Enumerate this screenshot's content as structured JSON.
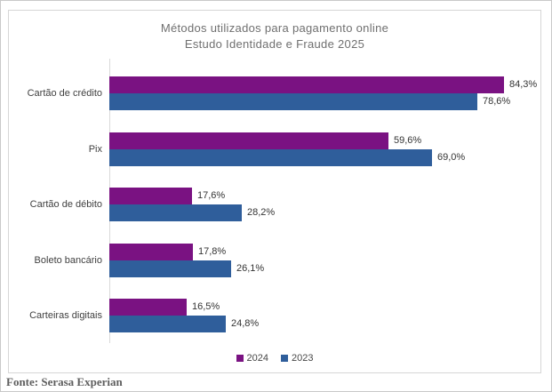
{
  "chart": {
    "title_line1": "Métodos utilizados para pagamento online",
    "title_line2": "Estudo Identidade e Fraude 2025"
  },
  "chart_data": {
    "type": "bar",
    "orientation": "horizontal",
    "title": "Métodos utilizados para pagamento online — Estudo Identidade e Fraude 2025",
    "categories": [
      "Cartão de crédito",
      "Pix",
      "Cartão de débito",
      "Boleto bancário",
      "Carteiras digitais"
    ],
    "series": [
      {
        "name": "2024",
        "color": "#7a1282",
        "values": [
          84.3,
          59.6,
          17.6,
          17.8,
          16.5
        ],
        "labels": [
          "84,3%",
          "59,6%",
          "17,6%",
          "17,8%",
          "16,5%"
        ]
      },
      {
        "name": "2023",
        "color": "#2f5e9b",
        "values": [
          78.6,
          69.0,
          28.2,
          26.1,
          24.8
        ],
        "labels": [
          "78,6%",
          "69,0%",
          "28,2%",
          "26,1%",
          "24,8%"
        ]
      }
    ],
    "xlabel": "",
    "ylabel": "",
    "xlim": [
      0,
      91
    ],
    "value_suffix": "%",
    "grid": false,
    "legend_position": "bottom"
  },
  "legend": {
    "items": [
      {
        "label": "2024",
        "color": "#7a1282"
      },
      {
        "label": "2023",
        "color": "#2f5e9b"
      }
    ]
  },
  "footer": {
    "source": "Fonte: Serasa Experian"
  }
}
